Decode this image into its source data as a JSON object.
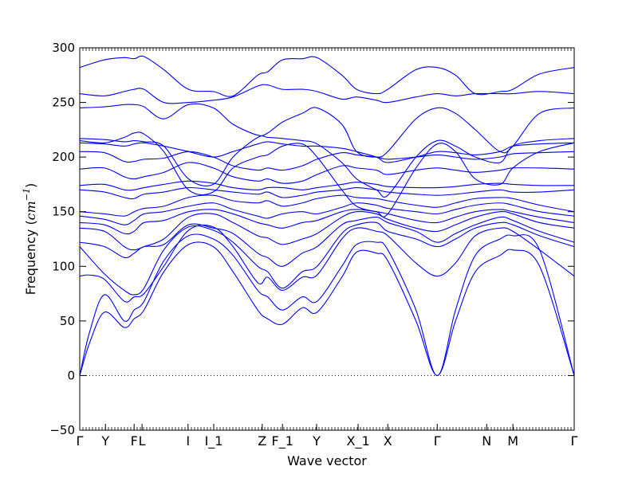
{
  "chart_data": {
    "type": "line",
    "xlabel": "Wave vector",
    "ylabel_prefix": "Frequency (",
    "ylabel_unit_base": "cm",
    "ylabel_unit_exp": "−1",
    "ylabel_suffix": ")",
    "ylim": [
      -50,
      300
    ],
    "xlim": [
      0,
      1
    ],
    "yticks": [
      -50,
      0,
      50,
      100,
      150,
      200,
      250,
      300
    ],
    "grid": false,
    "legend": "none",
    "line_color": "#0000ff",
    "zero_line": {
      "y": 0,
      "style": "dotted"
    },
    "high_symmetry_points": [
      {
        "label": "Γ",
        "x": 0.0
      },
      {
        "label": "Y",
        "x": 0.052
      },
      {
        "label": "F",
        "x": 0.11
      },
      {
        "label": "L",
        "x": 0.126
      },
      {
        "label": "I",
        "x": 0.219
      },
      {
        "label": "I_1",
        "x": 0.271
      },
      {
        "label": "Z",
        "x": 0.369
      },
      {
        "label": "F_1",
        "x": 0.41
      },
      {
        "label": "Y",
        "x": 0.479
      },
      {
        "label": "X_1",
        "x": 0.563
      },
      {
        "label": "X",
        "x": 0.623
      },
      {
        "label": "Γ",
        "x": 0.723
      },
      {
        "label": "N",
        "x": 0.823
      },
      {
        "label": "M",
        "x": 0.876
      },
      {
        "label": "Γ",
        "x": 1.0
      }
    ],
    "series": [
      {
        "x": [
          0,
          0.02,
          0.05,
          0.09,
          0.11,
          0.13,
          0.17,
          0.22,
          0.27,
          0.31,
          0.36,
          0.38,
          0.41,
          0.45,
          0.48,
          0.53,
          0.56,
          0.6,
          0.623,
          0.68,
          0.723,
          0.76,
          0.8,
          0.85,
          0.876,
          0.93,
          1.0
        ],
        "y": [
          0,
          30,
          58,
          44,
          52,
          60,
          95,
          120,
          118,
          95,
          60,
          52,
          47,
          62,
          58,
          90,
          113,
          112,
          105,
          50,
          0,
          50,
          95,
          110,
          115,
          100,
          0
        ]
      },
      {
        "x": [
          0,
          0.02,
          0.05,
          0.09,
          0.11,
          0.13,
          0.17,
          0.22,
          0.27,
          0.31,
          0.36,
          0.38,
          0.41,
          0.45,
          0.48,
          0.53,
          0.56,
          0.6,
          0.623,
          0.68,
          0.723,
          0.76,
          0.8,
          0.85,
          0.876,
          0.93,
          1.0
        ],
        "y": [
          0,
          40,
          74,
          50,
          60,
          68,
          105,
          128,
          125,
          110,
          78,
          72,
          60,
          72,
          68,
          100,
          120,
          122,
          115,
          60,
          0,
          60,
          110,
          125,
          128,
          115,
          0
        ]
      },
      {
        "x": [
          0,
          0.02,
          0.05,
          0.09,
          0.11,
          0.13,
          0.17,
          0.22,
          0.27,
          0.31,
          0.36,
          0.38,
          0.41,
          0.45,
          0.48,
          0.53,
          0.56,
          0.6,
          0.623,
          0.68,
          0.723,
          0.76,
          0.8,
          0.85,
          0.876,
          0.93,
          1.0
        ],
        "y": [
          91,
          92,
          88,
          68,
          72,
          75,
          100,
          133,
          136,
          118,
          85,
          90,
          78,
          90,
          92,
          125,
          135,
          132,
          128,
          103,
          91,
          103,
          128,
          135,
          132,
          115,
          91
        ]
      },
      {
        "x": [
          0,
          0.05,
          0.09,
          0.11,
          0.13,
          0.17,
          0.22,
          0.27,
          0.31,
          0.36,
          0.38,
          0.41,
          0.45,
          0.48,
          0.53,
          0.56,
          0.6,
          0.623,
          0.68,
          0.723,
          0.76,
          0.8,
          0.85,
          0.876,
          0.93,
          1.0
        ],
        "y": [
          118,
          93,
          78,
          74,
          80,
          115,
          136,
          133,
          122,
          100,
          95,
          80,
          95,
          100,
          130,
          138,
          140,
          132,
          125,
          118,
          125,
          135,
          140,
          138,
          128,
          118
        ]
      },
      {
        "x": [
          0,
          0.05,
          0.09,
          0.11,
          0.13,
          0.17,
          0.22,
          0.27,
          0.31,
          0.36,
          0.38,
          0.41,
          0.45,
          0.48,
          0.53,
          0.56,
          0.6,
          0.623,
          0.68,
          0.723,
          0.76,
          0.8,
          0.85,
          0.876,
          0.93,
          1.0
        ],
        "y": [
          122,
          118,
          108,
          112,
          118,
          120,
          138,
          135,
          130,
          112,
          108,
          100,
          112,
          118,
          138,
          142,
          145,
          140,
          132,
          122,
          130,
          138,
          145,
          142,
          132,
          122
        ]
      },
      {
        "x": [
          0,
          0.05,
          0.09,
          0.11,
          0.13,
          0.17,
          0.22,
          0.27,
          0.31,
          0.36,
          0.38,
          0.41,
          0.45,
          0.48,
          0.53,
          0.56,
          0.6,
          0.623,
          0.68,
          0.723,
          0.76,
          0.8,
          0.85,
          0.876,
          0.93,
          1.0
        ],
        "y": [
          135,
          132,
          118,
          115,
          118,
          125,
          145,
          148,
          140,
          128,
          126,
          120,
          125,
          130,
          145,
          150,
          148,
          143,
          135,
          132,
          138,
          145,
          150,
          148,
          140,
          135
        ]
      },
      {
        "x": [
          0,
          0.05,
          0.09,
          0.11,
          0.13,
          0.17,
          0.22,
          0.27,
          0.31,
          0.36,
          0.38,
          0.41,
          0.45,
          0.48,
          0.53,
          0.56,
          0.6,
          0.623,
          0.68,
          0.723,
          0.76,
          0.8,
          0.85,
          0.876,
          0.93,
          1.0
        ],
        "y": [
          140,
          138,
          130,
          132,
          140,
          142,
          150,
          152,
          148,
          140,
          138,
          135,
          140,
          142,
          150,
          152,
          150,
          148,
          142,
          140,
          145,
          150,
          152,
          150,
          145,
          140
        ]
      },
      {
        "x": [
          0,
          0.05,
          0.09,
          0.11,
          0.13,
          0.17,
          0.22,
          0.27,
          0.31,
          0.36,
          0.38,
          0.41,
          0.45,
          0.48,
          0.53,
          0.56,
          0.6,
          0.623,
          0.68,
          0.723,
          0.76,
          0.8,
          0.85,
          0.876,
          0.93,
          1.0
        ],
        "y": [
          146,
          143,
          138,
          142,
          148,
          150,
          155,
          158,
          152,
          146,
          144,
          148,
          150,
          148,
          154,
          158,
          156,
          153,
          150,
          148,
          152,
          156,
          158,
          156,
          150,
          146
        ]
      },
      {
        "x": [
          0,
          0.05,
          0.09,
          0.11,
          0.13,
          0.17,
          0.22,
          0.27,
          0.31,
          0.36,
          0.38,
          0.41,
          0.45,
          0.48,
          0.53,
          0.56,
          0.6,
          0.623,
          0.68,
          0.723,
          0.76,
          0.8,
          0.85,
          0.876,
          0.93,
          1.0
        ],
        "y": [
          150,
          148,
          146,
          150,
          153,
          155,
          163,
          165,
          160,
          158,
          160,
          155,
          158,
          162,
          165,
          163,
          162,
          160,
          156,
          154,
          158,
          162,
          163,
          162,
          156,
          150
        ]
      },
      {
        "x": [
          0,
          0.05,
          0.09,
          0.11,
          0.13,
          0.17,
          0.22,
          0.27,
          0.31,
          0.36,
          0.38,
          0.41,
          0.45,
          0.48,
          0.53,
          0.56,
          0.6,
          0.623,
          0.68,
          0.723,
          0.76,
          0.8,
          0.85,
          0.876,
          0.93,
          1.0
        ],
        "y": [
          170,
          168,
          163,
          162,
          166,
          168,
          172,
          170,
          168,
          166,
          168,
          163,
          165,
          168,
          170,
          172,
          170,
          168,
          166,
          165,
          166,
          168,
          170,
          168,
          168,
          170
        ]
      },
      {
        "x": [
          0,
          0.05,
          0.09,
          0.11,
          0.13,
          0.17,
          0.22,
          0.27,
          0.31,
          0.36,
          0.38,
          0.41,
          0.45,
          0.48,
          0.53,
          0.56,
          0.6,
          0.623,
          0.68,
          0.723,
          0.76,
          0.8,
          0.85,
          0.876,
          0.93,
          1.0
        ],
        "y": [
          174,
          175,
          170,
          170,
          172,
          175,
          178,
          176,
          172,
          170,
          172,
          172,
          170,
          172,
          175,
          177,
          175,
          173,
          172,
          172,
          173,
          175,
          176,
          175,
          174,
          174
        ]
      },
      {
        "x": [
          0,
          0.05,
          0.09,
          0.11,
          0.13,
          0.17,
          0.22,
          0.27,
          0.31,
          0.36,
          0.38,
          0.41,
          0.45,
          0.48,
          0.53,
          0.56,
          0.6,
          0.623,
          0.68,
          0.723,
          0.76,
          0.8,
          0.85,
          0.876,
          0.93,
          1.0
        ],
        "y": [
          189,
          190,
          182,
          180,
          182,
          186,
          195,
          190,
          182,
          178,
          180,
          176,
          178,
          184,
          192,
          190,
          188,
          184,
          188,
          190,
          188,
          186,
          188,
          190,
          190,
          189
        ]
      },
      {
        "x": [
          0,
          0.05,
          0.09,
          0.11,
          0.13,
          0.17,
          0.22,
          0.27,
          0.31,
          0.36,
          0.38,
          0.41,
          0.45,
          0.48,
          0.53,
          0.56,
          0.6,
          0.623,
          0.68,
          0.723,
          0.76,
          0.8,
          0.85,
          0.876,
          0.93,
          1.0
        ],
        "y": [
          205,
          204,
          196,
          196,
          198,
          199,
          205,
          200,
          192,
          188,
          190,
          188,
          192,
          198,
          204,
          202,
          200,
          198,
          200,
          202,
          200,
          198,
          200,
          203,
          204,
          205
        ]
      },
      {
        "x": [
          0,
          0.05,
          0.09,
          0.11,
          0.13,
          0.17,
          0.22,
          0.27,
          0.31,
          0.36,
          0.38,
          0.41,
          0.45,
          0.48,
          0.53,
          0.56,
          0.6,
          0.623,
          0.68,
          0.723,
          0.76,
          0.8,
          0.85,
          0.876,
          0.93,
          1.0
        ],
        "y": [
          213,
          212,
          210,
          212,
          213,
          210,
          205,
          200,
          205,
          212,
          214,
          212,
          210,
          210,
          208,
          205,
          200,
          195,
          200,
          205,
          204,
          202,
          205,
          210,
          212,
          213
        ]
      },
      {
        "x": [
          0,
          0.05,
          0.09,
          0.11,
          0.13,
          0.17,
          0.22,
          0.27,
          0.31,
          0.36,
          0.38,
          0.41,
          0.45,
          0.48,
          0.53,
          0.56,
          0.6,
          0.623,
          0.68,
          0.723,
          0.76,
          0.8,
          0.85,
          0.876,
          0.93,
          1.0
        ],
        "y": [
          217,
          216,
          214,
          215,
          214,
          210,
          180,
          175,
          200,
          218,
          218,
          217,
          215,
          212,
          195,
          180,
          170,
          165,
          200,
          215,
          210,
          200,
          195,
          210,
          215,
          217
        ]
      },
      {
        "x": [
          0,
          0.05,
          0.09,
          0.11,
          0.13,
          0.17,
          0.22,
          0.27,
          0.31,
          0.36,
          0.38,
          0.41,
          0.45,
          0.48,
          0.53,
          0.56,
          0.6,
          0.623,
          0.68,
          0.723,
          0.76,
          0.8,
          0.85,
          0.876,
          0.93,
          1.0
        ],
        "y": [
          215,
          213,
          218,
          222,
          221,
          205,
          170,
          168,
          190,
          200,
          202,
          210,
          212,
          200,
          170,
          155,
          150,
          148,
          190,
          212,
          205,
          180,
          175,
          190,
          205,
          213
        ]
      },
      {
        "x": [
          0,
          0.05,
          0.09,
          0.11,
          0.13,
          0.17,
          0.22,
          0.27,
          0.31,
          0.36,
          0.38,
          0.41,
          0.45,
          0.48,
          0.53,
          0.56,
          0.6,
          0.623,
          0.68,
          0.723,
          0.76,
          0.8,
          0.85,
          0.876,
          0.93,
          1.0
        ],
        "y": [
          245,
          246,
          248,
          248,
          246,
          235,
          248,
          245,
          230,
          220,
          222,
          232,
          240,
          245,
          230,
          205,
          200,
          205,
          235,
          245,
          240,
          225,
          205,
          210,
          240,
          245
        ]
      },
      {
        "x": [
          0,
          0.05,
          0.09,
          0.11,
          0.13,
          0.17,
          0.22,
          0.27,
          0.31,
          0.36,
          0.38,
          0.41,
          0.45,
          0.48,
          0.53,
          0.56,
          0.6,
          0.623,
          0.68,
          0.723,
          0.76,
          0.8,
          0.85,
          0.876,
          0.93,
          1.0
        ],
        "y": [
          258,
          256,
          260,
          262,
          262,
          250,
          250,
          252,
          255,
          265,
          266,
          262,
          262,
          260,
          253,
          255,
          252,
          250,
          255,
          258,
          256,
          258,
          258,
          258,
          260,
          258
        ]
      },
      {
        "x": [
          0,
          0.05,
          0.09,
          0.11,
          0.13,
          0.17,
          0.22,
          0.27,
          0.31,
          0.36,
          0.38,
          0.41,
          0.45,
          0.48,
          0.53,
          0.56,
          0.6,
          0.623,
          0.68,
          0.723,
          0.76,
          0.8,
          0.85,
          0.876,
          0.93,
          1.0
        ],
        "y": [
          282,
          289,
          291,
          290,
          292,
          280,
          262,
          260,
          256,
          275,
          278,
          289,
          290,
          291,
          275,
          262,
          258,
          262,
          280,
          282,
          275,
          258,
          260,
          262,
          276,
          282
        ]
      }
    ]
  }
}
